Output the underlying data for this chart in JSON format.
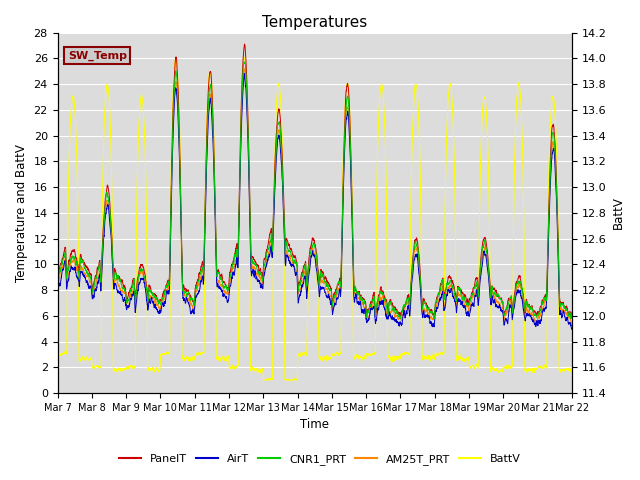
{
  "title": "Temperatures",
  "xlabel": "Time",
  "ylabel_left": "Temperature and BattV",
  "ylabel_right": "BattV",
  "ylim_left": [
    0,
    28
  ],
  "ylim_right": [
    11.4,
    14.2
  ],
  "yticks_left": [
    0,
    2,
    4,
    6,
    8,
    10,
    12,
    14,
    16,
    18,
    20,
    22,
    24,
    26,
    28
  ],
  "yticks_right": [
    11.4,
    11.6,
    11.8,
    12.0,
    12.2,
    12.4,
    12.6,
    12.8,
    13.0,
    13.2,
    13.4,
    13.6,
    13.8,
    14.0,
    14.2
  ],
  "xtick_labels": [
    "Mar 7",
    "Mar 8",
    "Mar 9",
    "Mar 10",
    "Mar 11",
    "Mar 12",
    "Mar 13",
    "Mar 14",
    "Mar 15",
    "Mar 16",
    "Mar 17",
    "Mar 18",
    "Mar 19",
    "Mar 20",
    "Mar 21",
    "Mar 22"
  ],
  "colors": {
    "PanelT": "#cc0000",
    "AirT": "#0000cc",
    "CNR1_PRT": "#00cc00",
    "AM25T_PRT": "#ff8800",
    "BattV": "#ffff00"
  },
  "inset_label": "SW_Temp",
  "inset_facecolor": "#cccccc",
  "inset_edgecolor": "#8b0000",
  "inset_textcolor": "#8b0000",
  "background_color": "#dcdcdc",
  "grid_color": "#ffffff",
  "n_points": 3600,
  "day_peak_temps": [
    11,
    16,
    10,
    26,
    25,
    27,
    22,
    12,
    24,
    8,
    12,
    9,
    12,
    9,
    21
  ],
  "night_base_temps": [
    9,
    8,
    7,
    7,
    8,
    9,
    10,
    8,
    7,
    6,
    6,
    7,
    7,
    6,
    6
  ],
  "battv_day_peak": [
    23,
    24,
    23,
    26,
    25,
    26,
    24,
    11,
    24,
    24,
    24,
    24,
    23,
    24,
    23
  ],
  "battv_night_base": [
    3,
    2,
    2,
    3,
    3,
    2,
    1,
    3,
    3,
    3,
    3,
    3,
    2,
    2,
    2
  ]
}
